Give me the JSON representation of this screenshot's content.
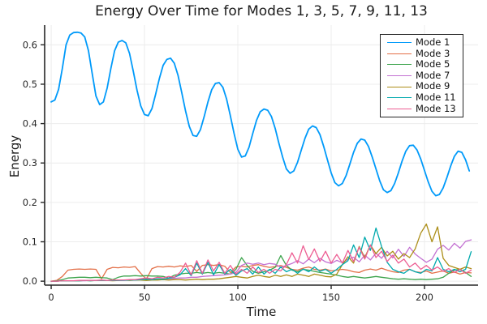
{
  "chart_data": {
    "type": "line",
    "title": "Energy Over Time for Modes 1, 3, 5, 7, 9, 11, 13",
    "xlabel": "Time",
    "ylabel": "Energy",
    "xlim": [
      -3.5,
      228.7
    ],
    "ylim": [
      -0.01,
      0.65
    ],
    "xticks": [
      0,
      50,
      100,
      150,
      200
    ],
    "xtick_labels": [
      "0",
      "50",
      "100",
      "150",
      "200"
    ],
    "yticks": [
      0.0,
      0.1,
      0.2,
      0.3,
      0.4,
      0.5,
      0.6
    ],
    "ytick_labels": [
      "0.0",
      "0.1",
      "0.2",
      "0.3",
      "0.4",
      "0.5",
      "0.6"
    ],
    "grid": true,
    "legend_position": "top-right",
    "background_color": "#ffffff",
    "axis_color": "#262626",
    "grid_color": "#ececec",
    "series": [
      {
        "name": "Mode 1",
        "color": "#009AFA",
        "x0": 0,
        "dx": 2,
        "y": [
          0.455,
          0.46,
          0.487,
          0.54,
          0.6,
          0.625,
          0.631,
          0.632,
          0.63,
          0.62,
          0.585,
          0.527,
          0.47,
          0.448,
          0.455,
          0.49,
          0.54,
          0.585,
          0.607,
          0.611,
          0.605,
          0.578,
          0.533,
          0.485,
          0.445,
          0.423,
          0.42,
          0.438,
          0.475,
          0.515,
          0.548,
          0.563,
          0.566,
          0.553,
          0.522,
          0.478,
          0.432,
          0.393,
          0.37,
          0.368,
          0.385,
          0.418,
          0.455,
          0.486,
          0.502,
          0.504,
          0.492,
          0.462,
          0.42,
          0.375,
          0.335,
          0.315,
          0.318,
          0.34,
          0.375,
          0.408,
          0.43,
          0.437,
          0.434,
          0.418,
          0.388,
          0.35,
          0.315,
          0.285,
          0.274,
          0.28,
          0.302,
          0.333,
          0.363,
          0.386,
          0.394,
          0.39,
          0.372,
          0.342,
          0.308,
          0.275,
          0.25,
          0.242,
          0.248,
          0.268,
          0.297,
          0.327,
          0.35,
          0.361,
          0.358,
          0.342,
          0.315,
          0.285,
          0.255,
          0.232,
          0.225,
          0.23,
          0.248,
          0.275,
          0.305,
          0.33,
          0.344,
          0.345,
          0.333,
          0.31,
          0.281,
          0.252,
          0.228,
          0.217,
          0.22,
          0.237,
          0.263,
          0.292,
          0.317,
          0.33,
          0.327,
          0.308,
          0.28
        ]
      },
      {
        "name": "Mode 3",
        "color": "#E36F47",
        "x0": 0,
        "dx": 3,
        "y": [
          0.0,
          0.002,
          0.012,
          0.028,
          0.03,
          0.031,
          0.03,
          0.031,
          0.03,
          0.006,
          0.03,
          0.035,
          0.034,
          0.036,
          0.035,
          0.037,
          0.02,
          0.005,
          0.032,
          0.037,
          0.036,
          0.038,
          0.036,
          0.039,
          0.037,
          0.04,
          0.025,
          0.04,
          0.042,
          0.04,
          0.042,
          0.038,
          0.022,
          0.036,
          0.038,
          0.036,
          0.04,
          0.042,
          0.038,
          0.035,
          0.037,
          0.04,
          0.035,
          0.03,
          0.028,
          0.033,
          0.036,
          0.03,
          0.028,
          0.031,
          0.026,
          0.028,
          0.03,
          0.028,
          0.024,
          0.022,
          0.028,
          0.031,
          0.028,
          0.033,
          0.028,
          0.024,
          0.022,
          0.028,
          0.03,
          0.024,
          0.022,
          0.026,
          0.02,
          0.023,
          0.026,
          0.02,
          0.023,
          0.018,
          0.022,
          0.021
        ]
      },
      {
        "name": "Mode 5",
        "color": "#3DA44D",
        "x0": 0,
        "dx": 3,
        "y": [
          0.0,
          0.001,
          0.004,
          0.008,
          0.009,
          0.01,
          0.01,
          0.009,
          0.01,
          0.009,
          0.008,
          0.004,
          0.01,
          0.013,
          0.013,
          0.014,
          0.013,
          0.014,
          0.013,
          0.013,
          0.012,
          0.008,
          0.015,
          0.018,
          0.02,
          0.02,
          0.022,
          0.02,
          0.022,
          0.02,
          0.022,
          0.02,
          0.018,
          0.03,
          0.06,
          0.04,
          0.025,
          0.02,
          0.024,
          0.028,
          0.035,
          0.065,
          0.04,
          0.028,
          0.024,
          0.03,
          0.028,
          0.025,
          0.022,
          0.02,
          0.018,
          0.015,
          0.012,
          0.01,
          0.012,
          0.01,
          0.008,
          0.01,
          0.012,
          0.01,
          0.008,
          0.006,
          0.005,
          0.006,
          0.005,
          0.004,
          0.005,
          0.004,
          0.005,
          0.006,
          0.01,
          0.02,
          0.028,
          0.03,
          0.022,
          0.012
        ]
      },
      {
        "name": "Mode 7",
        "color": "#C371D2",
        "x0": 0,
        "dx": 3,
        "y": [
          0.0,
          0.0,
          0.001,
          0.001,
          0.001,
          0.001,
          0.001,
          0.002,
          0.002,
          0.002,
          0.002,
          0.002,
          0.003,
          0.003,
          0.003,
          0.003,
          0.004,
          0.004,
          0.005,
          0.005,
          0.005,
          0.006,
          0.007,
          0.008,
          0.008,
          0.01,
          0.01,
          0.012,
          0.013,
          0.014,
          0.015,
          0.016,
          0.018,
          0.022,
          0.04,
          0.046,
          0.043,
          0.046,
          0.042,
          0.045,
          0.043,
          0.035,
          0.04,
          0.045,
          0.052,
          0.044,
          0.056,
          0.047,
          0.058,
          0.049,
          0.045,
          0.053,
          0.047,
          0.056,
          0.061,
          0.049,
          0.066,
          0.054,
          0.071,
          0.058,
          0.076,
          0.059,
          0.081,
          0.063,
          0.086,
          0.069,
          0.058,
          0.048,
          0.056,
          0.081,
          0.091,
          0.079,
          0.096,
          0.084,
          0.101,
          0.105
        ]
      },
      {
        "name": "Mode 9",
        "color": "#AC8E18",
        "x0": 0,
        "dx": 3,
        "y": [
          0.0,
          0.0,
          0.001,
          0.001,
          0.001,
          0.001,
          0.002,
          0.001,
          0.002,
          0.002,
          0.002,
          0.001,
          0.002,
          0.003,
          0.002,
          0.003,
          0.003,
          0.002,
          0.003,
          0.003,
          0.004,
          0.003,
          0.004,
          0.004,
          0.003,
          0.004,
          0.005,
          0.004,
          0.005,
          0.005,
          0.006,
          0.008,
          0.01,
          0.012,
          0.01,
          0.008,
          0.012,
          0.015,
          0.012,
          0.01,
          0.015,
          0.012,
          0.016,
          0.012,
          0.018,
          0.015,
          0.012,
          0.018,
          0.015,
          0.012,
          0.011,
          0.018,
          0.042,
          0.062,
          0.046,
          0.088,
          0.06,
          0.092,
          0.07,
          0.086,
          0.064,
          0.076,
          0.056,
          0.07,
          0.06,
          0.082,
          0.122,
          0.145,
          0.1,
          0.138,
          0.058,
          0.04,
          0.035,
          0.03,
          0.036,
          0.032
        ]
      },
      {
        "name": "Mode 11",
        "color": "#00A9AD",
        "x0": 0,
        "dx": 3,
        "y": [
          0.0,
          0.0,
          0.001,
          0.001,
          0.001,
          0.001,
          0.002,
          0.001,
          0.002,
          0.002,
          0.002,
          0.002,
          0.002,
          0.002,
          0.003,
          0.003,
          0.004,
          0.005,
          0.004,
          0.006,
          0.005,
          0.008,
          0.01,
          0.016,
          0.032,
          0.014,
          0.046,
          0.018,
          0.048,
          0.016,
          0.042,
          0.018,
          0.03,
          0.015,
          0.026,
          0.032,
          0.018,
          0.036,
          0.018,
          0.03,
          0.02,
          0.036,
          0.024,
          0.03,
          0.02,
          0.031,
          0.024,
          0.036,
          0.025,
          0.03,
          0.02,
          0.03,
          0.042,
          0.052,
          0.092,
          0.06,
          0.112,
          0.078,
          0.135,
          0.088,
          0.048,
          0.03,
          0.024,
          0.02,
          0.03,
          0.024,
          0.02,
          0.03,
          0.026,
          0.06,
          0.03,
          0.024,
          0.03,
          0.024,
          0.03,
          0.075
        ]
      },
      {
        "name": "Mode 13",
        "color": "#ED5E93",
        "x0": 0,
        "dx": 3,
        "y": [
          0.0,
          0.0,
          0.001,
          0.001,
          0.001,
          0.002,
          0.002,
          0.002,
          0.002,
          0.003,
          0.002,
          0.003,
          0.003,
          0.003,
          0.004,
          0.004,
          0.006,
          0.008,
          0.006,
          0.01,
          0.008,
          0.012,
          0.01,
          0.022,
          0.046,
          0.016,
          0.052,
          0.02,
          0.054,
          0.026,
          0.048,
          0.02,
          0.04,
          0.018,
          0.03,
          0.02,
          0.036,
          0.022,
          0.03,
          0.02,
          0.03,
          0.026,
          0.042,
          0.072,
          0.046,
          0.09,
          0.055,
          0.082,
          0.05,
          0.076,
          0.046,
          0.068,
          0.046,
          0.078,
          0.05,
          0.086,
          0.056,
          0.092,
          0.06,
          0.076,
          0.05,
          0.066,
          0.046,
          0.056,
          0.036,
          0.046,
          0.03,
          0.04,
          0.028,
          0.036,
          0.025,
          0.032,
          0.022,
          0.03,
          0.02,
          0.028
        ]
      }
    ]
  }
}
